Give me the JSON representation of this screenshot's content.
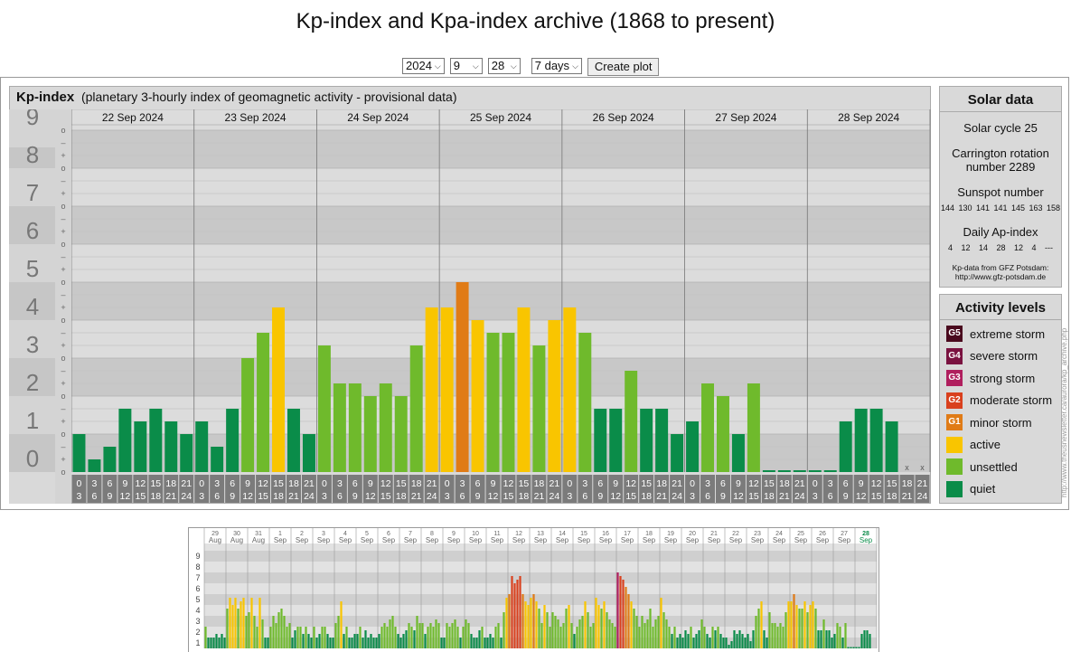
{
  "page": {
    "title": "Kp-index and Kpa-index archive (1868 to present)"
  },
  "controls": {
    "year": "2024",
    "month": "9",
    "day": "28",
    "span": "7 days",
    "button": "Create plot"
  },
  "kp_panel": {
    "name": "Kp-index",
    "description": "(planetary 3-hourly index of geomagnetic activity - provisional data)"
  },
  "colors": {
    "quiet": "#0a8c49",
    "unsettled": "#6fba2c",
    "active": "#f9c500",
    "G1": "#e07b16",
    "G2": "#d9401d",
    "G3": "#b01f5e",
    "G4": "#7a1240",
    "G5": "#4a0a1e"
  },
  "chart_data": [
    {
      "type": "bar",
      "title": "Kp-index",
      "subtitle": "(planetary 3-hourly index of geomagnetic activity - provisional data)",
      "days": [
        "22 Sep 2024",
        "23 Sep 2024",
        "24 Sep 2024",
        "25 Sep 2024",
        "26 Sep 2024",
        "27 Sep 2024",
        "28 Sep 2024"
      ],
      "interval_start": [
        "0",
        "3",
        "6",
        "9",
        "12",
        "15",
        "18",
        "21"
      ],
      "interval_end": [
        "3",
        "6",
        "9",
        "12",
        "15",
        "18",
        "21",
        "24"
      ],
      "y_ticks": [
        "0",
        "1",
        "2",
        "3",
        "4",
        "5",
        "6",
        "7",
        "8",
        "9"
      ],
      "minor_ticks": [
        "o",
        "+",
        "–"
      ],
      "ylim": [
        0,
        9
      ],
      "grid": true,
      "values": [
        [
          1.0,
          0.333,
          0.667,
          1.667,
          1.333,
          1.667,
          1.333,
          1.0
        ],
        [
          1.333,
          0.667,
          1.667,
          3.0,
          3.667,
          4.333,
          1.667,
          1.0
        ],
        [
          3.333,
          2.333,
          2.333,
          2.0,
          2.333,
          2.0,
          3.333,
          4.333
        ],
        [
          4.333,
          5.0,
          4.0,
          3.667,
          3.667,
          4.333,
          3.333,
          4.0
        ],
        [
          4.333,
          3.667,
          1.667,
          1.667,
          2.667,
          1.667,
          1.667,
          1.0
        ],
        [
          1.333,
          2.333,
          2.0,
          1.0,
          2.333,
          0.0,
          0.0,
          0.0
        ],
        [
          0.0,
          0.0,
          1.333,
          1.667,
          1.667,
          1.333,
          null,
          null
        ]
      ],
      "missing_marker": "x"
    },
    {
      "type": "bar",
      "title": "",
      "y_ticks": [
        "1",
        "2",
        "3",
        "4",
        "5",
        "6",
        "7",
        "8",
        "9"
      ],
      "ylim": [
        0,
        9
      ],
      "days": [
        {
          "d": "29",
          "m": "Aug"
        },
        {
          "d": "30",
          "m": "Aug"
        },
        {
          "d": "31",
          "m": "Aug"
        },
        {
          "d": "1",
          "m": "Sep"
        },
        {
          "d": "2",
          "m": "Sep"
        },
        {
          "d": "3",
          "m": "Sep"
        },
        {
          "d": "4",
          "m": "Sep"
        },
        {
          "d": "5",
          "m": "Sep"
        },
        {
          "d": "6",
          "m": "Sep"
        },
        {
          "d": "7",
          "m": "Sep"
        },
        {
          "d": "8",
          "m": "Sep"
        },
        {
          "d": "9",
          "m": "Sep"
        },
        {
          "d": "10",
          "m": "Sep"
        },
        {
          "d": "11",
          "m": "Sep"
        },
        {
          "d": "12",
          "m": "Sep"
        },
        {
          "d": "13",
          "m": "Sep"
        },
        {
          "d": "14",
          "m": "Sep"
        },
        {
          "d": "15",
          "m": "Sep"
        },
        {
          "d": "16",
          "m": "Sep"
        },
        {
          "d": "17",
          "m": "Sep"
        },
        {
          "d": "18",
          "m": "Sep"
        },
        {
          "d": "19",
          "m": "Sep"
        },
        {
          "d": "20",
          "m": "Sep"
        },
        {
          "d": "21",
          "m": "Sep"
        },
        {
          "d": "22",
          "m": "Sep"
        },
        {
          "d": "23",
          "m": "Sep"
        },
        {
          "d": "24",
          "m": "Sep"
        },
        {
          "d": "25",
          "m": "Sep"
        },
        {
          "d": "26",
          "m": "Sep"
        },
        {
          "d": "27",
          "m": "Sep"
        },
        {
          "d": "28",
          "m": "Sep"
        }
      ],
      "values": [
        [
          2.0,
          1.0,
          1.0,
          1.0,
          1.333,
          1.0,
          1.333,
          1.0
        ],
        [
          3.667,
          4.667,
          4.0,
          4.667,
          3.667,
          4.333,
          4.667,
          3.0
        ],
        [
          3.333,
          4.667,
          3.0,
          2.0,
          4.667,
          2.667,
          1.0,
          1.0
        ],
        [
          2.0,
          3.0,
          2.333,
          3.333,
          3.667,
          3.0,
          2.0,
          2.333
        ],
        [
          1.0,
          1.667,
          2.0,
          2.0,
          1.333,
          2.0,
          1.333,
          1.0
        ],
        [
          2.0,
          1.0,
          1.333,
          2.0,
          2.0,
          1.333,
          1.0,
          1.0
        ],
        [
          2.333,
          3.0,
          4.333,
          1.333,
          2.0,
          1.0,
          1.0,
          1.333
        ],
        [
          1.333,
          2.0,
          1.0,
          1.667,
          1.0,
          1.333,
          1.0,
          1.0
        ],
        [
          1.333,
          2.0,
          2.333,
          2.0,
          2.667,
          3.0,
          2.0,
          1.333
        ],
        [
          1.0,
          1.333,
          1.667,
          2.333,
          2.0,
          1.667,
          3.0,
          2.333
        ],
        [
          2.333,
          1.333,
          2.0,
          2.333,
          2.0,
          2.667,
          2.333,
          1.0
        ],
        [
          1.0,
          2.333,
          2.0,
          2.333,
          2.667,
          2.0,
          1.0,
          2.0
        ],
        [
          2.667,
          2.333,
          1.333,
          1.0,
          1.0,
          1.667,
          2.0,
          1.0
        ],
        [
          1.0,
          1.333,
          1.0,
          2.0,
          2.333,
          1.0,
          3.333,
          4.667
        ],
        [
          5.0,
          6.667,
          6.0,
          6.333,
          6.667,
          5.0,
          4.333,
          4.0
        ],
        [
          4.667,
          5.0,
          4.333,
          3.667,
          2.333,
          4.0,
          3.333,
          2.0
        ],
        [
          3.333,
          3.0,
          2.667,
          2.0,
          2.333,
          3.667,
          4.0,
          2.333
        ],
        [
          1.333,
          2.0,
          2.667,
          3.0,
          4.333,
          3.333,
          2.0,
          2.333
        ],
        [
          4.667,
          4.0,
          3.667,
          4.333,
          3.333,
          2.667,
          2.333,
          2.0
        ],
        [
          7.0,
          6.667,
          6.333,
          5.667,
          5.0,
          4.333,
          3.667,
          3.0
        ],
        [
          2.0,
          3.0,
          2.333,
          2.667,
          3.667,
          2.0,
          2.667,
          3.0
        ],
        [
          4.667,
          3.333,
          2.667,
          2.0,
          1.333,
          2.0,
          1.0,
          1.333
        ],
        [
          1.0,
          1.667,
          1.333,
          2.0,
          1.0,
          1.333,
          1.667,
          2.667
        ],
        [
          2.0,
          1.333,
          1.0,
          2.0,
          1.667,
          2.0,
          1.333,
          1.0
        ],
        [
          1.0,
          0.333,
          0.667,
          1.667,
          1.333,
          1.667,
          1.333,
          1.0
        ],
        [
          1.333,
          0.667,
          1.667,
          3.0,
          3.667,
          4.333,
          1.667,
          1.0
        ],
        [
          3.333,
          2.333,
          2.333,
          2.0,
          2.333,
          2.0,
          3.333,
          4.333
        ],
        [
          4.333,
          5.0,
          4.0,
          3.667,
          3.667,
          4.333,
          3.333,
          4.0
        ],
        [
          4.333,
          3.667,
          1.667,
          1.667,
          2.667,
          1.667,
          1.667,
          1.0
        ],
        [
          1.333,
          2.333,
          2.0,
          1.0,
          2.333,
          0.0,
          0.0,
          0.0
        ],
        [
          0.0,
          0.0,
          1.333,
          1.667,
          1.667,
          1.333,
          null,
          null
        ]
      ]
    }
  ],
  "solar_data": {
    "title": "Solar data",
    "cycle": "Solar cycle 25",
    "carrington_label": "Carrington rotation",
    "carrington_value": "number 2289",
    "sunspot_label": "Sunspot number",
    "sunspot_values": "144 130 141 141 145 163 158",
    "ap_label": "Daily Ap-index",
    "ap_values": "4 12 14 28 12 4 ---",
    "credit_line1": "Kp-data from GFZ Potsdam:",
    "credit_line2": "http://www.gfz-potsdam.de"
  },
  "activity_levels": {
    "title": "Activity levels",
    "items": [
      {
        "code": "G5",
        "label": "extreme storm",
        "color": "#4a0a1e"
      },
      {
        "code": "G4",
        "label": "severe storm",
        "color": "#7a1240"
      },
      {
        "code": "G3",
        "label": "strong storm",
        "color": "#b01f5e"
      },
      {
        "code": "G2",
        "label": "moderate storm",
        "color": "#d9401d"
      },
      {
        "code": "G1",
        "label": "minor storm",
        "color": "#e07b16"
      },
      {
        "code": "",
        "label": "active",
        "color": "#f9c500"
      },
      {
        "code": "",
        "label": "unsettled",
        "color": "#6fba2c"
      },
      {
        "code": "",
        "label": "quiet",
        "color": "#0a8c49"
      }
    ]
  },
  "watermark": "http://www.theusnewsletter.ca/aurora/kp_archive.php"
}
